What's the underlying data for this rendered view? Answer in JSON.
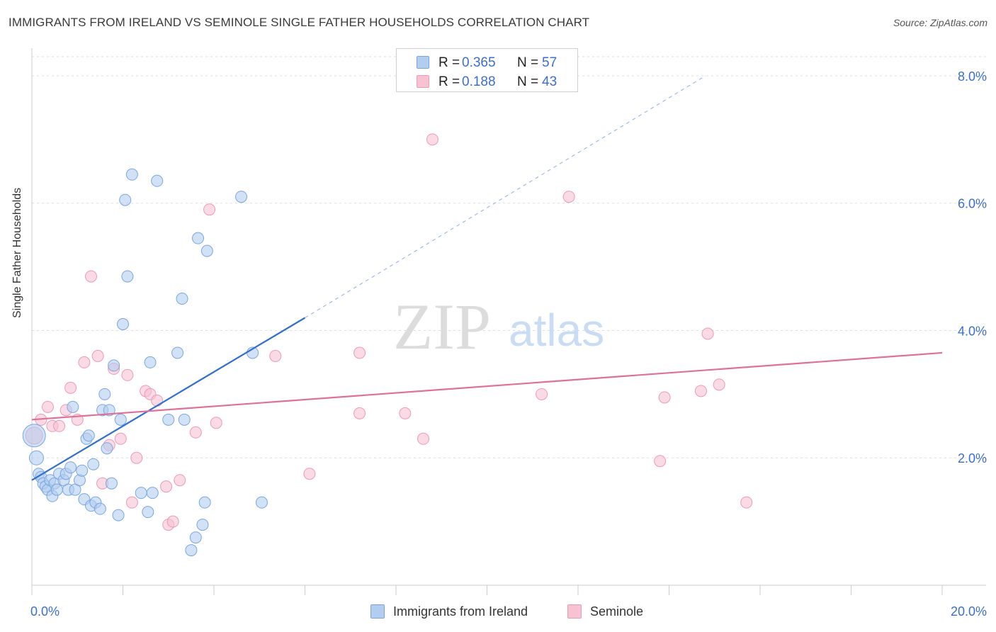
{
  "title": "IMMIGRANTS FROM IRELAND VS SEMINOLE SINGLE FATHER HOUSEHOLDS CORRELATION CHART",
  "source": "Source: ZipAtlas.com",
  "watermark": {
    "zip": "ZIP",
    "atlas": "atlas"
  },
  "legend_top": {
    "rows": [
      {
        "r_label": "R =",
        "r_value": "0.365",
        "n_label": "N =",
        "n_value": "57"
      },
      {
        "r_label": "R =",
        "r_value": "0.188",
        "n_label": "N =",
        "n_value": "43"
      }
    ]
  },
  "legend_bottom": {
    "items": [
      {
        "label": "Immigrants from Ireland"
      },
      {
        "label": "Seminole"
      }
    ]
  },
  "colors": {
    "blue_fill": "#b3cdf0",
    "blue_stroke": "#7aa6e0",
    "blue_line": "#2f6fcf",
    "pink_fill": "#f7c2d2",
    "pink_stroke": "#ec9ab5",
    "pink_line": "#e0709a",
    "tick_label": "#3a6fcf",
    "grid": "#dddddd"
  },
  "chart_data": {
    "type": "scatter",
    "title": "IMMIGRANTS FROM IRELAND VS SEMINOLE SINGLE FATHER HOUSEHOLDS CORRELATION CHART",
    "xlabel": "",
    "ylabel": "Single Father Households",
    "xlim": [
      0,
      20
    ],
    "ylim": [
      0,
      8.3
    ],
    "x_tick_labels": [
      "0.0%",
      "20.0%"
    ],
    "y_ticks": [
      2,
      4,
      6,
      8
    ],
    "y_tick_labels": [
      "2.0%",
      "4.0%",
      "6.0%",
      "8.0%"
    ],
    "grid": true,
    "legend_position": "top-center",
    "series": [
      {
        "name": "Immigrants from Ireland",
        "color": "#b3cdf0",
        "points": [
          [
            0.05,
            2.35,
            16
          ],
          [
            0.1,
            2.0,
            10
          ],
          [
            0.15,
            1.75,
            8
          ],
          [
            0.2,
            1.7,
            8
          ],
          [
            0.25,
            1.6,
            8
          ],
          [
            0.3,
            1.55,
            8
          ],
          [
            0.35,
            1.5,
            8
          ],
          [
            0.4,
            1.65,
            8
          ],
          [
            0.45,
            1.4,
            8
          ],
          [
            0.5,
            1.6,
            8
          ],
          [
            0.55,
            1.5,
            8
          ],
          [
            0.6,
            1.75,
            8
          ],
          [
            0.7,
            1.65,
            8
          ],
          [
            0.75,
            1.75,
            8
          ],
          [
            0.8,
            1.5,
            8
          ],
          [
            0.85,
            1.85,
            8
          ],
          [
            0.9,
            2.8,
            8
          ],
          [
            0.95,
            1.5,
            8
          ],
          [
            1.05,
            1.65,
            8
          ],
          [
            1.1,
            1.8,
            8
          ],
          [
            1.15,
            1.35,
            8
          ],
          [
            1.2,
            2.3,
            8
          ],
          [
            1.25,
            2.35,
            8
          ],
          [
            1.3,
            1.25,
            8
          ],
          [
            1.35,
            1.9,
            8
          ],
          [
            1.4,
            1.3,
            8
          ],
          [
            1.5,
            1.2,
            8
          ],
          [
            1.55,
            2.75,
            8
          ],
          [
            1.6,
            3.0,
            8
          ],
          [
            1.65,
            2.15,
            8
          ],
          [
            1.7,
            2.75,
            8
          ],
          [
            1.75,
            1.6,
            8
          ],
          [
            1.8,
            3.45,
            8
          ],
          [
            1.9,
            1.1,
            8
          ],
          [
            1.95,
            2.6,
            8
          ],
          [
            2.0,
            4.1,
            8
          ],
          [
            2.05,
            6.05,
            8
          ],
          [
            2.1,
            4.85,
            8
          ],
          [
            2.2,
            6.45,
            8
          ],
          [
            2.4,
            1.45,
            8
          ],
          [
            2.55,
            1.15,
            8
          ],
          [
            2.6,
            3.5,
            8
          ],
          [
            2.65,
            1.45,
            8
          ],
          [
            2.75,
            6.35,
            8
          ],
          [
            3.0,
            2.6,
            8
          ],
          [
            3.2,
            3.65,
            8
          ],
          [
            3.3,
            4.5,
            8
          ],
          [
            3.35,
            2.6,
            8
          ],
          [
            3.5,
            0.55,
            8
          ],
          [
            3.6,
            0.75,
            8
          ],
          [
            3.65,
            5.45,
            8
          ],
          [
            3.75,
            0.95,
            8
          ],
          [
            3.8,
            1.3,
            8
          ],
          [
            3.85,
            5.25,
            8
          ],
          [
            4.6,
            6.1,
            8
          ],
          [
            4.85,
            3.65,
            8
          ],
          [
            5.05,
            1.3,
            8
          ]
        ]
      },
      {
        "name": "Seminole",
        "color": "#f7c2d2",
        "points": [
          [
            0.05,
            2.35,
            12
          ],
          [
            0.2,
            2.6,
            8
          ],
          [
            0.35,
            2.8,
            8
          ],
          [
            0.45,
            2.5,
            8
          ],
          [
            0.6,
            2.5,
            8
          ],
          [
            0.75,
            2.75,
            8
          ],
          [
            0.85,
            3.1,
            8
          ],
          [
            1.0,
            2.6,
            8
          ],
          [
            1.15,
            3.5,
            8
          ],
          [
            1.3,
            4.85,
            8
          ],
          [
            1.45,
            3.6,
            8
          ],
          [
            1.55,
            1.6,
            8
          ],
          [
            1.7,
            2.2,
            8
          ],
          [
            1.8,
            3.4,
            8
          ],
          [
            1.95,
            2.3,
            8
          ],
          [
            2.1,
            3.3,
            8
          ],
          [
            2.2,
            1.3,
            8
          ],
          [
            2.3,
            2.0,
            8
          ],
          [
            2.5,
            3.05,
            8
          ],
          [
            2.6,
            3.0,
            8
          ],
          [
            2.75,
            2.9,
            8
          ],
          [
            2.95,
            1.55,
            8
          ],
          [
            3.0,
            0.95,
            8
          ],
          [
            3.1,
            1.0,
            8
          ],
          [
            3.25,
            1.65,
            8
          ],
          [
            3.6,
            2.4,
            8
          ],
          [
            3.9,
            5.9,
            8
          ],
          [
            4.05,
            2.55,
            8
          ],
          [
            5.35,
            3.6,
            8
          ],
          [
            6.1,
            1.75,
            8
          ],
          [
            7.2,
            3.65,
            8
          ],
          [
            7.2,
            2.7,
            8
          ],
          [
            8.2,
            2.7,
            8
          ],
          [
            8.6,
            2.3,
            8
          ],
          [
            8.8,
            7.0,
            8
          ],
          [
            11.2,
            3.0,
            8
          ],
          [
            11.8,
            6.1,
            8
          ],
          [
            13.8,
            1.95,
            8
          ],
          [
            13.9,
            2.95,
            8
          ],
          [
            14.7,
            3.05,
            8
          ],
          [
            14.85,
            3.95,
            8
          ],
          [
            15.1,
            3.15,
            8
          ],
          [
            15.7,
            1.3,
            8
          ]
        ]
      }
    ],
    "trend_lines": [
      {
        "series": "Immigrants from Ireland",
        "x_start": 0.0,
        "y_start": 1.65,
        "x_solid_end": 6.0,
        "y_solid_end": 4.2,
        "x_dash_end": 14.8,
        "y_dash_end": 8.0,
        "style": "solid-then-dashed"
      },
      {
        "series": "Seminole",
        "x_start": 0.0,
        "y_start": 2.6,
        "x_end": 20.0,
        "y_end": 3.65,
        "style": "solid"
      }
    ]
  }
}
